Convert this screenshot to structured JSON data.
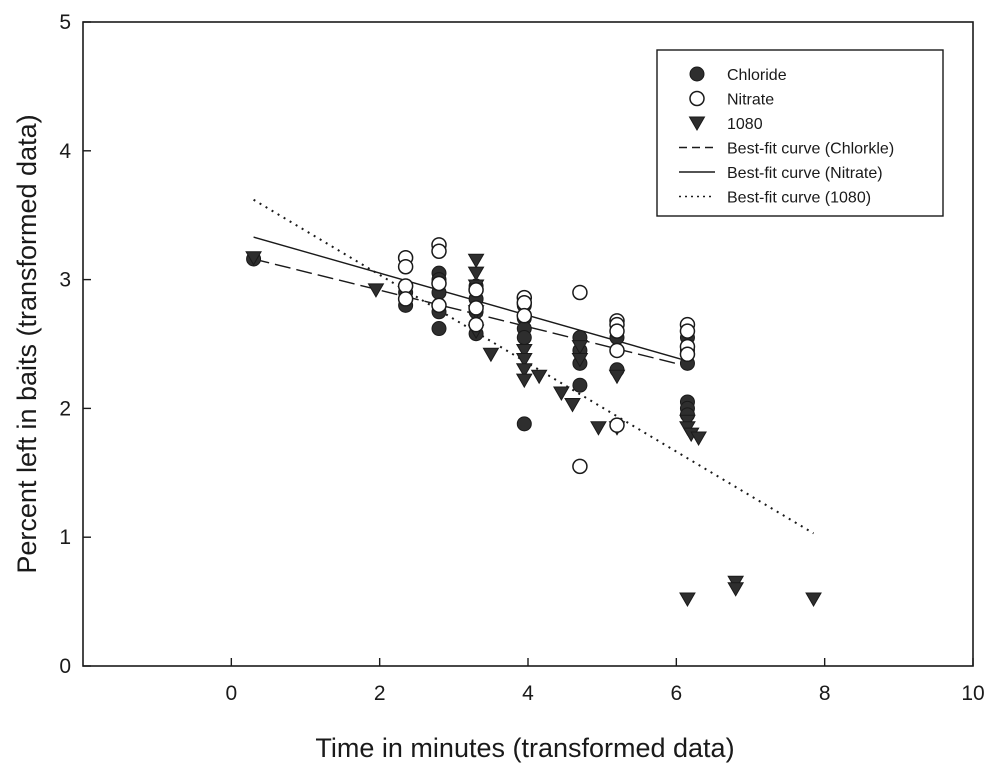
{
  "chart_data": {
    "type": "scatter",
    "title": "",
    "xlabel": "Time in minutes (transformed data)",
    "ylabel": "Percent left in baits (transformed data)",
    "xlim": [
      -2,
      10
    ],
    "ylim": [
      0,
      5
    ],
    "xticks": [
      0,
      2,
      4,
      6,
      8,
      10
    ],
    "yticks": [
      0,
      1,
      2,
      3,
      4,
      5
    ],
    "grid": false,
    "legend_position": "top-right",
    "series": [
      {
        "name": "Chloride",
        "marker": "filled-circle",
        "color": "#333333",
        "points": [
          [
            0.3,
            3.16
          ],
          [
            2.35,
            2.95
          ],
          [
            2.35,
            2.9
          ],
          [
            2.35,
            2.85
          ],
          [
            2.35,
            2.8
          ],
          [
            2.8,
            3.05
          ],
          [
            2.8,
            3.0
          ],
          [
            2.8,
            2.9
          ],
          [
            2.8,
            2.75
          ],
          [
            2.8,
            2.62
          ],
          [
            3.3,
            2.95
          ],
          [
            3.3,
            2.85
          ],
          [
            3.3,
            2.75
          ],
          [
            3.3,
            2.65
          ],
          [
            3.3,
            2.58
          ],
          [
            3.95,
            2.8
          ],
          [
            3.95,
            2.7
          ],
          [
            3.95,
            2.62
          ],
          [
            3.95,
            2.55
          ],
          [
            3.95,
            1.88
          ],
          [
            4.7,
            2.55
          ],
          [
            4.7,
            2.45
          ],
          [
            4.7,
            2.35
          ],
          [
            4.7,
            2.18
          ],
          [
            5.2,
            2.55
          ],
          [
            5.2,
            2.45
          ],
          [
            5.2,
            2.3
          ],
          [
            6.15,
            2.55
          ],
          [
            6.15,
            2.45
          ],
          [
            6.15,
            2.35
          ],
          [
            6.15,
            2.05
          ],
          [
            6.15,
            2.0
          ],
          [
            6.15,
            1.95
          ]
        ]
      },
      {
        "name": "Nitrate",
        "marker": "open-circle",
        "color": "#333333",
        "points": [
          [
            2.35,
            3.17
          ],
          [
            2.35,
            3.1
          ],
          [
            2.35,
            2.95
          ],
          [
            2.35,
            2.85
          ],
          [
            2.8,
            3.27
          ],
          [
            2.8,
            3.22
          ],
          [
            2.8,
            2.97
          ],
          [
            2.8,
            2.8
          ],
          [
            3.3,
            2.92
          ],
          [
            3.3,
            2.78
          ],
          [
            3.3,
            2.65
          ],
          [
            3.95,
            2.86
          ],
          [
            3.95,
            2.82
          ],
          [
            3.95,
            2.72
          ],
          [
            4.7,
            2.9
          ],
          [
            4.7,
            1.55
          ],
          [
            5.2,
            2.68
          ],
          [
            5.2,
            2.65
          ],
          [
            5.2,
            2.6
          ],
          [
            5.2,
            2.45
          ],
          [
            5.2,
            1.87
          ],
          [
            6.15,
            2.65
          ],
          [
            6.15,
            2.6
          ],
          [
            6.15,
            2.48
          ],
          [
            6.15,
            2.42
          ]
        ]
      },
      {
        "name": "1080",
        "marker": "filled-triangle-down",
        "color": "#333333",
        "points": [
          [
            0.3,
            3.17
          ],
          [
            1.95,
            2.92
          ],
          [
            3.3,
            3.15
          ],
          [
            3.3,
            3.05
          ],
          [
            3.3,
            2.95
          ],
          [
            3.3,
            2.75
          ],
          [
            3.3,
            2.6
          ],
          [
            3.5,
            2.42
          ],
          [
            3.95,
            2.45
          ],
          [
            3.95,
            2.38
          ],
          [
            3.95,
            2.3
          ],
          [
            3.95,
            2.22
          ],
          [
            4.15,
            2.25
          ],
          [
            4.45,
            2.12
          ],
          [
            4.6,
            2.03
          ],
          [
            4.7,
            2.48
          ],
          [
            4.7,
            2.38
          ],
          [
            4.95,
            1.85
          ],
          [
            5.2,
            1.85
          ],
          [
            5.2,
            2.25
          ],
          [
            6.15,
            1.9
          ],
          [
            6.15,
            1.85
          ],
          [
            6.2,
            1.8
          ],
          [
            6.3,
            1.77
          ],
          [
            6.15,
            0.52
          ],
          [
            6.8,
            0.65
          ],
          [
            6.8,
            0.6
          ],
          [
            7.85,
            0.52
          ]
        ]
      }
    ],
    "fit_lines": [
      {
        "name": "Best-fit curve (Chlorkle)",
        "dash": "longdash",
        "from": [
          0.3,
          3.16
        ],
        "to": [
          6.2,
          2.32
        ]
      },
      {
        "name": "Best-fit curve (Nitrate)",
        "dash": "solid",
        "from": [
          0.3,
          3.33
        ],
        "to": [
          6.2,
          2.36
        ]
      },
      {
        "name": "Best-fit curve (1080)",
        "dash": "dotted",
        "from": [
          0.3,
          3.62
        ],
        "to": [
          7.85,
          1.03
        ]
      }
    ]
  }
}
